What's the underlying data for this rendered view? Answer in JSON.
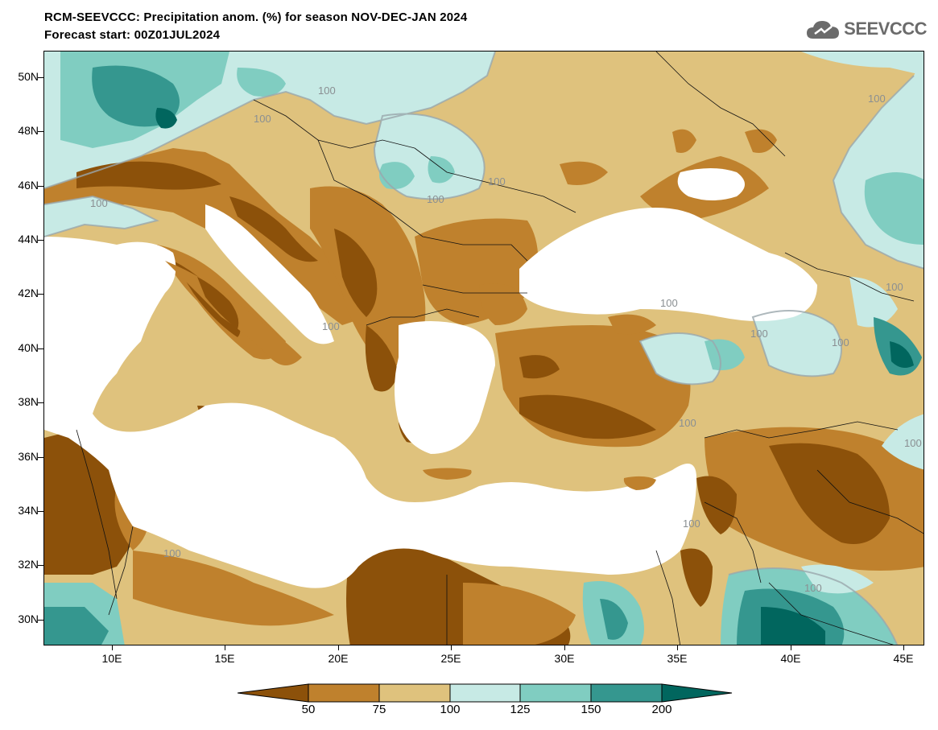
{
  "header": {
    "title_line1": "RCM-SEEVCCC: Precipitation anom. (%) for season NOV-DEC-JAN 2024",
    "title_line2": "Forecast start: 00Z01JUL2024",
    "logo_text": "SEEVCCC"
  },
  "map": {
    "lat_labels": [
      "50N",
      "48N",
      "46N",
      "44N",
      "42N",
      "40N",
      "38N",
      "36N",
      "34N",
      "32N",
      "30N"
    ],
    "lon_labels": [
      "10E",
      "15E",
      "20E",
      "25E",
      "30E",
      "35E",
      "40E",
      "45E"
    ],
    "contour_labels": [
      "100",
      "100",
      "100",
      "100",
      "100",
      "100",
      "100",
      "100",
      "100",
      "100",
      "100",
      "100",
      "100",
      "100",
      "100",
      "100"
    ],
    "region": {
      "lon_min": 7,
      "lon_max": 46,
      "lat_min": 29,
      "lat_max": 51
    }
  },
  "colorbar": {
    "ticks": [
      "50",
      "75",
      "100",
      "125",
      "150",
      "200"
    ],
    "colors": [
      "#8c510a",
      "#bf812d",
      "#dfc27d",
      "#c7eae5",
      "#80cdc1",
      "#35978f",
      "#01665e"
    ]
  }
}
